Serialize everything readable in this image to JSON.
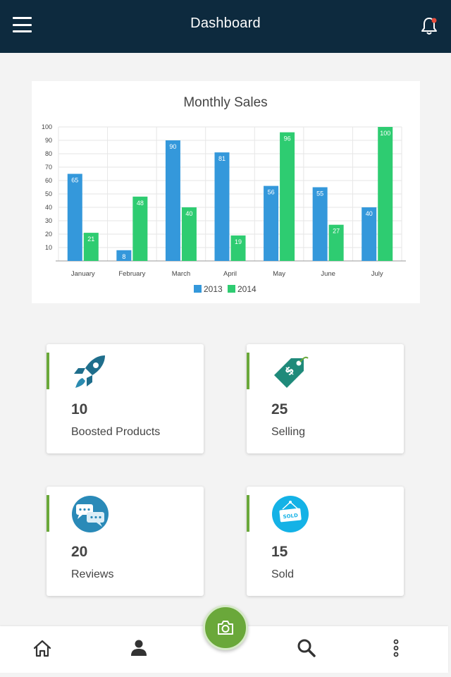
{
  "header": {
    "title": "Dashboard",
    "menu_icon": "hamburger-menu-icon",
    "notification_icon": "bell-icon"
  },
  "colors": {
    "topbar": "#0d2a3e",
    "accent_green": "#6aa83a",
    "series_2013": "#3498db",
    "series_2014": "#2ecc71"
  },
  "chart_data": {
    "type": "bar",
    "title": "Monthly Sales",
    "categories": [
      "January",
      "February",
      "March",
      "April",
      "May",
      "June",
      "July"
    ],
    "series": [
      {
        "name": "2013",
        "values": [
          65,
          8,
          90,
          81,
          56,
          55,
          40
        ]
      },
      {
        "name": "2014",
        "values": [
          21,
          48,
          40,
          19,
          96,
          27,
          100
        ]
      }
    ],
    "ylim": [
      0,
      100
    ],
    "yticks": [
      10,
      20,
      30,
      40,
      50,
      60,
      70,
      80,
      90,
      100
    ],
    "grid": true,
    "legend": "bottom",
    "data_labels": true
  },
  "stats": [
    {
      "value": "10",
      "label": "Boosted Products",
      "icon": "rocket-icon"
    },
    {
      "value": "25",
      "label": "Selling",
      "icon": "price-tag-icon"
    },
    {
      "value": "20",
      "label": "Reviews",
      "icon": "chat-bubbles-icon"
    },
    {
      "value": "15",
      "label": "Sold",
      "icon": "sold-sign-icon",
      "icon_text": "SOLD"
    }
  ],
  "bottom_nav": {
    "items": [
      "home-icon",
      "profile-icon",
      "search-icon",
      "more-vertical-icon"
    ],
    "fab_icon": "camera-icon"
  }
}
